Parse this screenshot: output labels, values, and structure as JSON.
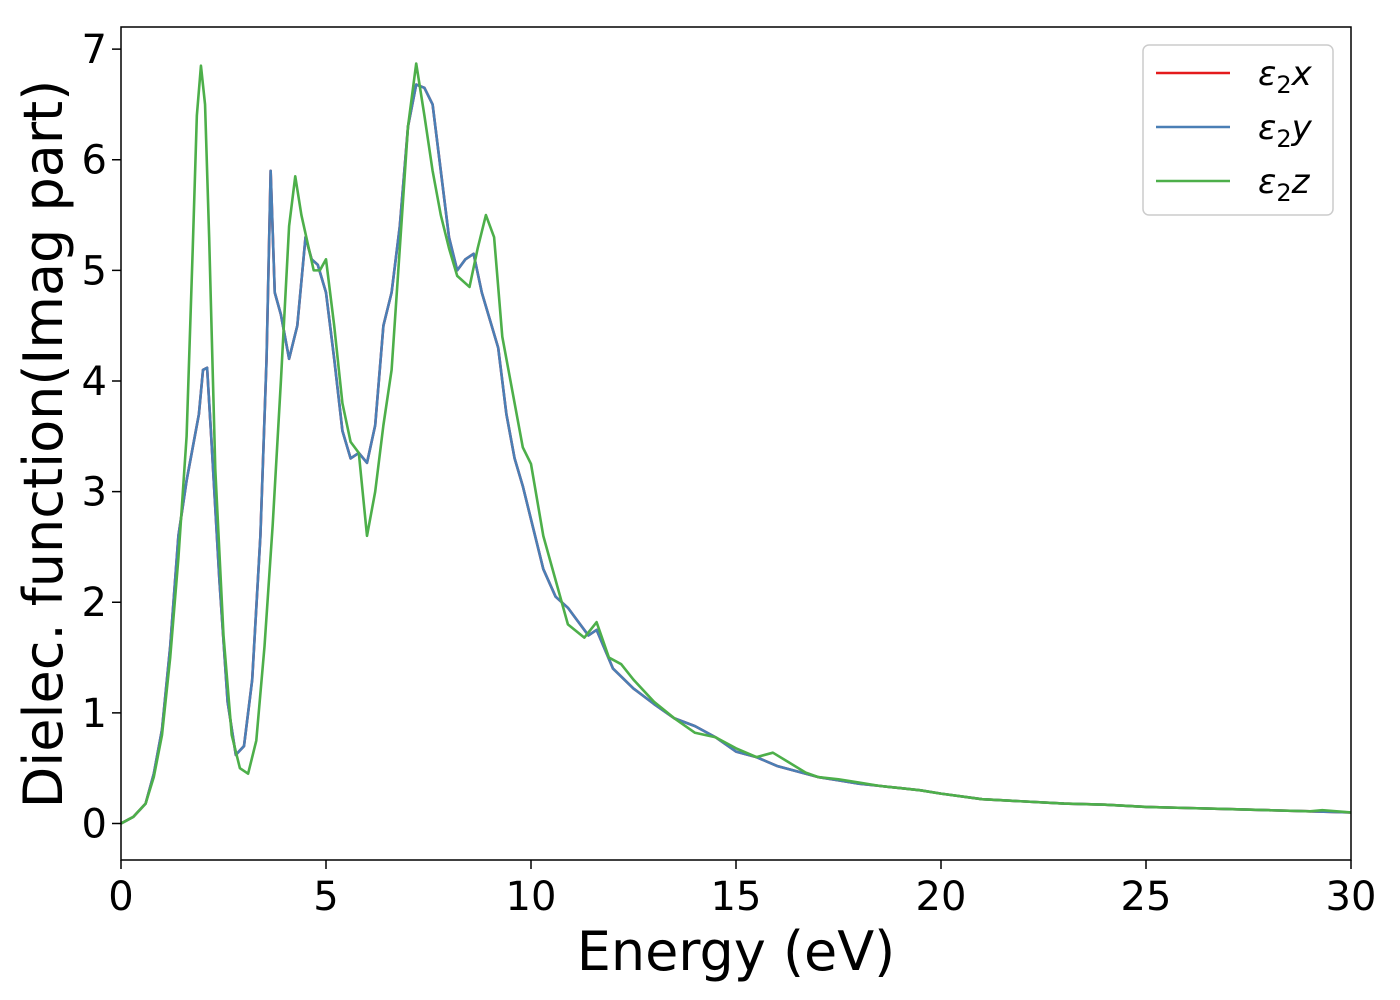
{
  "chart_data": {
    "type": "line",
    "xlabel": "Energy (eV)",
    "ylabel": "Dielec. function(Imag part)",
    "xlim": [
      0,
      30
    ],
    "ylim": [
      -0.33,
      7.2
    ],
    "xticks": [
      0,
      5,
      10,
      15,
      20,
      25,
      30
    ],
    "xtick_labels": [
      "0",
      "5",
      "10",
      "15",
      "20",
      "25",
      "30"
    ],
    "yticks": [
      0,
      1,
      2,
      3,
      4,
      5,
      6,
      7
    ],
    "ytick_labels": [
      "0",
      "1",
      "2",
      "3",
      "4",
      "5",
      "6",
      "7"
    ],
    "grid": false,
    "legend": "top-right",
    "series": [
      {
        "name": "ε2x",
        "legend_base": "ε",
        "legend_sub": "2",
        "legend_suffix": "x",
        "color": "#e41a1c",
        "x": [
          0,
          0.3,
          0.6,
          0.8,
          1.0,
          1.2,
          1.4,
          1.6,
          1.75,
          1.9,
          2.0,
          2.1,
          2.2,
          2.4,
          2.6,
          2.8,
          3.0,
          3.2,
          3.4,
          3.55,
          3.65,
          3.75,
          3.9,
          4.1,
          4.3,
          4.5,
          4.65,
          4.8,
          5.0,
          5.2,
          5.4,
          5.6,
          5.8,
          6.0,
          6.2,
          6.4,
          6.6,
          6.8,
          7.0,
          7.2,
          7.4,
          7.6,
          7.8,
          8.0,
          8.2,
          8.4,
          8.6,
          8.8,
          9.0,
          9.2,
          9.4,
          9.6,
          9.8,
          10.0,
          10.3,
          10.6,
          10.9,
          11.1,
          11.4,
          11.6,
          12.0,
          12.5,
          13.0,
          13.5,
          14.0,
          14.5,
          15.0,
          15.5,
          16.0,
          16.5,
          17.0,
          17.5,
          18.0,
          18.5,
          19.0,
          19.5,
          20.0,
          21.0,
          22.0,
          23.0,
          24.0,
          25.0,
          26.0,
          27.0,
          28.0,
          29.0,
          30.0
        ],
        "values": [
          0.0,
          0.06,
          0.18,
          0.45,
          0.85,
          1.6,
          2.6,
          3.1,
          3.4,
          3.7,
          4.1,
          4.12,
          3.5,
          2.2,
          1.1,
          0.62,
          0.7,
          1.3,
          2.6,
          4.2,
          5.9,
          4.8,
          4.6,
          4.2,
          4.5,
          5.3,
          5.1,
          5.05,
          4.8,
          4.2,
          3.55,
          3.3,
          3.35,
          3.26,
          3.6,
          4.5,
          4.8,
          5.4,
          6.3,
          6.68,
          6.65,
          6.5,
          5.9,
          5.3,
          5.0,
          5.1,
          5.15,
          4.8,
          4.55,
          4.3,
          3.7,
          3.3,
          3.05,
          2.75,
          2.3,
          2.05,
          1.95,
          1.85,
          1.7,
          1.75,
          1.4,
          1.22,
          1.08,
          0.95,
          0.88,
          0.78,
          0.65,
          0.6,
          0.52,
          0.47,
          0.42,
          0.39,
          0.36,
          0.34,
          0.32,
          0.3,
          0.27,
          0.22,
          0.2,
          0.18,
          0.17,
          0.15,
          0.14,
          0.13,
          0.12,
          0.11,
          0.1
        ]
      },
      {
        "name": "ε2y",
        "legend_base": "ε",
        "legend_sub": "2",
        "legend_suffix": "y",
        "color": "#4a7fb5",
        "x": [
          0,
          0.3,
          0.6,
          0.8,
          1.0,
          1.2,
          1.4,
          1.6,
          1.75,
          1.9,
          2.0,
          2.1,
          2.2,
          2.4,
          2.6,
          2.8,
          3.0,
          3.2,
          3.4,
          3.55,
          3.65,
          3.75,
          3.9,
          4.1,
          4.3,
          4.5,
          4.65,
          4.8,
          5.0,
          5.2,
          5.4,
          5.6,
          5.8,
          6.0,
          6.2,
          6.4,
          6.6,
          6.8,
          7.0,
          7.2,
          7.4,
          7.6,
          7.8,
          8.0,
          8.2,
          8.4,
          8.6,
          8.8,
          9.0,
          9.2,
          9.4,
          9.6,
          9.8,
          10.0,
          10.3,
          10.6,
          10.9,
          11.1,
          11.4,
          11.6,
          12.0,
          12.5,
          13.0,
          13.5,
          14.0,
          14.5,
          15.0,
          15.5,
          16.0,
          16.5,
          17.0,
          17.5,
          18.0,
          18.5,
          19.0,
          19.5,
          20.0,
          21.0,
          22.0,
          23.0,
          24.0,
          25.0,
          26.0,
          27.0,
          28.0,
          29.0,
          30.0
        ],
        "values": [
          0.0,
          0.06,
          0.18,
          0.45,
          0.85,
          1.6,
          2.6,
          3.1,
          3.4,
          3.7,
          4.1,
          4.12,
          3.5,
          2.2,
          1.1,
          0.62,
          0.7,
          1.3,
          2.6,
          4.2,
          5.9,
          4.8,
          4.6,
          4.2,
          4.5,
          5.3,
          5.1,
          5.05,
          4.8,
          4.2,
          3.55,
          3.3,
          3.35,
          3.26,
          3.6,
          4.5,
          4.8,
          5.4,
          6.3,
          6.68,
          6.65,
          6.5,
          5.9,
          5.3,
          5.0,
          5.1,
          5.15,
          4.8,
          4.55,
          4.3,
          3.7,
          3.3,
          3.05,
          2.75,
          2.3,
          2.05,
          1.95,
          1.85,
          1.7,
          1.75,
          1.4,
          1.22,
          1.08,
          0.95,
          0.88,
          0.78,
          0.65,
          0.6,
          0.52,
          0.47,
          0.42,
          0.39,
          0.36,
          0.34,
          0.32,
          0.3,
          0.27,
          0.22,
          0.2,
          0.18,
          0.17,
          0.15,
          0.14,
          0.13,
          0.12,
          0.11,
          0.1
        ]
      },
      {
        "name": "ε2z",
        "legend_base": "ε",
        "legend_sub": "2",
        "legend_suffix": "z",
        "color": "#4daf4a",
        "x": [
          0,
          0.3,
          0.6,
          0.8,
          1.0,
          1.2,
          1.4,
          1.6,
          1.75,
          1.85,
          1.95,
          2.05,
          2.15,
          2.3,
          2.5,
          2.7,
          2.9,
          3.1,
          3.3,
          3.5,
          3.7,
          3.9,
          4.1,
          4.25,
          4.4,
          4.55,
          4.7,
          4.85,
          5.0,
          5.2,
          5.4,
          5.6,
          5.8,
          6.0,
          6.2,
          6.4,
          6.6,
          6.8,
          7.0,
          7.2,
          7.4,
          7.6,
          7.8,
          8.0,
          8.2,
          8.5,
          8.7,
          8.9,
          9.1,
          9.3,
          9.6,
          9.8,
          10.0,
          10.3,
          10.6,
          10.9,
          11.3,
          11.6,
          11.9,
          12.2,
          12.5,
          13.0,
          13.5,
          14.0,
          14.5,
          15.0,
          15.5,
          15.9,
          16.3,
          16.7,
          17.0,
          17.5,
          18.0,
          18.5,
          19.0,
          19.5,
          20.0,
          21.0,
          22.0,
          23.0,
          24.0,
          25.0,
          26.0,
          27.0,
          28.0,
          29.0,
          29.3,
          30.0
        ],
        "values": [
          0.0,
          0.06,
          0.18,
          0.42,
          0.8,
          1.5,
          2.4,
          3.5,
          5.2,
          6.4,
          6.85,
          6.5,
          5.3,
          3.2,
          1.7,
          0.8,
          0.5,
          0.45,
          0.75,
          1.6,
          2.7,
          4.0,
          5.4,
          5.85,
          5.5,
          5.25,
          5.0,
          5.0,
          5.1,
          4.5,
          3.8,
          3.45,
          3.35,
          2.6,
          3.0,
          3.6,
          4.1,
          5.2,
          6.3,
          6.87,
          6.4,
          5.9,
          5.5,
          5.2,
          4.95,
          4.85,
          5.2,
          5.5,
          5.3,
          4.4,
          3.8,
          3.4,
          3.25,
          2.6,
          2.2,
          1.8,
          1.68,
          1.82,
          1.5,
          1.44,
          1.3,
          1.1,
          0.95,
          0.82,
          0.78,
          0.68,
          0.6,
          0.64,
          0.55,
          0.46,
          0.42,
          0.4,
          0.37,
          0.34,
          0.32,
          0.3,
          0.27,
          0.22,
          0.2,
          0.18,
          0.17,
          0.15,
          0.14,
          0.13,
          0.12,
          0.11,
          0.12,
          0.1
        ]
      }
    ]
  }
}
